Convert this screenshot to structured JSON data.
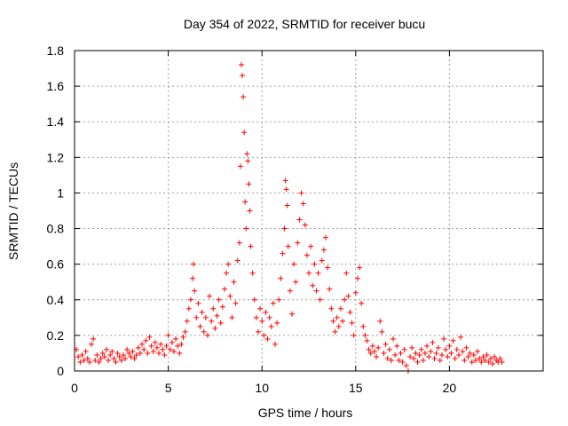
{
  "chart_data": {
    "type": "scatter",
    "title": "Day 354 of 2022, SRMTID for receiver bucu",
    "xlabel": "GPS time / hours",
    "ylabel": "SRMTID / TECUs",
    "xlim": [
      0,
      25
    ],
    "ylim": [
      0,
      1.8
    ],
    "x_ticks": [
      0,
      5,
      10,
      15,
      20
    ],
    "x_tick_labels": [
      "0",
      "5",
      "10",
      "15",
      "20"
    ],
    "y_ticks": [
      0,
      0.2,
      0.4,
      0.6,
      0.8,
      1,
      1.2,
      1.4,
      1.6,
      1.8
    ],
    "y_tick_labels": [
      "0",
      "0.2",
      "0.4",
      "0.6",
      "0.8",
      "1",
      "1.2",
      "1.4",
      "1.6",
      "1.8"
    ],
    "grid": true,
    "marker": "+",
    "marker_color": "#ff0000",
    "series": [
      {
        "name": "SRMTID",
        "points": [
          [
            0.1,
            0.12
          ],
          [
            0.2,
            0.08
          ],
          [
            0.3,
            0.05
          ],
          [
            0.4,
            0.09
          ],
          [
            0.5,
            0.06
          ],
          [
            0.6,
            0.11
          ],
          [
            0.7,
            0.07
          ],
          [
            0.8,
            0.05
          ],
          [
            0.9,
            0.15
          ],
          [
            1.0,
            0.18
          ],
          [
            1.1,
            0.06
          ],
          [
            1.2,
            0.09
          ],
          [
            1.3,
            0.05
          ],
          [
            1.4,
            0.07
          ],
          [
            1.5,
            0.1
          ],
          [
            1.6,
            0.08
          ],
          [
            1.7,
            0.12
          ],
          [
            1.8,
            0.06
          ],
          [
            1.9,
            0.09
          ],
          [
            2.0,
            0.11
          ],
          [
            2.1,
            0.07
          ],
          [
            2.2,
            0.05
          ],
          [
            2.3,
            0.1
          ],
          [
            2.4,
            0.08
          ],
          [
            2.5,
            0.06
          ],
          [
            2.6,
            0.09
          ],
          [
            2.7,
            0.07
          ],
          [
            2.8,
            0.12
          ],
          [
            2.9,
            0.1
          ],
          [
            3.0,
            0.08
          ],
          [
            3.1,
            0.11
          ],
          [
            3.2,
            0.07
          ],
          [
            3.3,
            0.09
          ],
          [
            3.4,
            0.13
          ],
          [
            3.5,
            0.1
          ],
          [
            3.6,
            0.15
          ],
          [
            3.7,
            0.12
          ],
          [
            3.8,
            0.17
          ],
          [
            3.9,
            0.1
          ],
          [
            4.0,
            0.19
          ],
          [
            4.1,
            0.14
          ],
          [
            4.2,
            0.11
          ],
          [
            4.3,
            0.16
          ],
          [
            4.4,
            0.13
          ],
          [
            4.5,
            0.1
          ],
          [
            4.6,
            0.15
          ],
          [
            4.7,
            0.12
          ],
          [
            4.8,
            0.09
          ],
          [
            4.9,
            0.14
          ],
          [
            5.0,
            0.2
          ],
          [
            5.1,
            0.12
          ],
          [
            5.2,
            0.16
          ],
          [
            5.3,
            0.11
          ],
          [
            5.4,
            0.18
          ],
          [
            5.5,
            0.14
          ],
          [
            5.6,
            0.1
          ],
          [
            5.7,
            0.15
          ],
          [
            5.8,
            0.19
          ],
          [
            5.9,
            0.22
          ],
          [
            6.0,
            0.28
          ],
          [
            6.1,
            0.35
          ],
          [
            6.2,
            0.4
          ],
          [
            6.3,
            0.52
          ],
          [
            6.35,
            0.6
          ],
          [
            6.4,
            0.45
          ],
          [
            6.5,
            0.3
          ],
          [
            6.6,
            0.38
          ],
          [
            6.7,
            0.25
          ],
          [
            6.8,
            0.33
          ],
          [
            6.9,
            0.22
          ],
          [
            7.0,
            0.3
          ],
          [
            7.1,
            0.2
          ],
          [
            7.2,
            0.42
          ],
          [
            7.3,
            0.28
          ],
          [
            7.4,
            0.35
          ],
          [
            7.5,
            0.24
          ],
          [
            7.6,
            0.31
          ],
          [
            7.7,
            0.4
          ],
          [
            7.8,
            0.27
          ],
          [
            7.9,
            0.36
          ],
          [
            8.0,
            0.46
          ],
          [
            8.1,
            0.55
          ],
          [
            8.2,
            0.6
          ],
          [
            8.3,
            0.42
          ],
          [
            8.4,
            0.3
          ],
          [
            8.5,
            0.5
          ],
          [
            8.6,
            0.38
          ],
          [
            8.7,
            0.62
          ],
          [
            8.8,
            0.72
          ],
          [
            8.85,
            1.15
          ],
          [
            8.9,
            1.72
          ],
          [
            8.95,
            1.66
          ],
          [
            9.0,
            1.54
          ],
          [
            9.05,
            1.34
          ],
          [
            9.1,
            0.95
          ],
          [
            9.15,
            0.8
          ],
          [
            9.2,
            1.22
          ],
          [
            9.25,
            1.18
          ],
          [
            9.3,
            1.05
          ],
          [
            9.35,
            0.9
          ],
          [
            9.4,
            0.7
          ],
          [
            9.5,
            0.55
          ],
          [
            9.6,
            0.4
          ],
          [
            9.7,
            0.3
          ],
          [
            9.8,
            0.22
          ],
          [
            9.9,
            0.35
          ],
          [
            10.0,
            0.28
          ],
          [
            10.1,
            0.2
          ],
          [
            10.2,
            0.33
          ],
          [
            10.3,
            0.18
          ],
          [
            10.4,
            0.3
          ],
          [
            10.5,
            0.25
          ],
          [
            10.6,
            0.38
          ],
          [
            10.7,
            0.15
          ],
          [
            10.8,
            0.27
          ],
          [
            10.9,
            0.4
          ],
          [
            11.0,
            0.52
          ],
          [
            11.1,
            0.66
          ],
          [
            11.2,
            0.8
          ],
          [
            11.25,
            1.07
          ],
          [
            11.3,
            1.02
          ],
          [
            11.35,
            0.93
          ],
          [
            11.4,
            0.7
          ],
          [
            11.5,
            0.45
          ],
          [
            11.6,
            0.32
          ],
          [
            11.7,
            0.6
          ],
          [
            11.8,
            0.5
          ],
          [
            11.9,
            0.72
          ],
          [
            12.0,
            0.85
          ],
          [
            12.1,
            1.0
          ],
          [
            12.2,
            0.94
          ],
          [
            12.3,
            0.82
          ],
          [
            12.4,
            0.65
          ],
          [
            12.5,
            0.55
          ],
          [
            12.6,
            0.7
          ],
          [
            12.7,
            0.48
          ],
          [
            12.8,
            0.6
          ],
          [
            12.9,
            0.45
          ],
          [
            13.0,
            0.55
          ],
          [
            13.1,
            0.4
          ],
          [
            13.2,
            0.62
          ],
          [
            13.3,
            0.68
          ],
          [
            13.4,
            0.75
          ],
          [
            13.5,
            0.58
          ],
          [
            13.6,
            0.46
          ],
          [
            13.7,
            0.35
          ],
          [
            13.8,
            0.28
          ],
          [
            13.9,
            0.22
          ],
          [
            14.0,
            0.3
          ],
          [
            14.1,
            0.25
          ],
          [
            14.2,
            0.35
          ],
          [
            14.3,
            0.28
          ],
          [
            14.4,
            0.4
          ],
          [
            14.5,
            0.55
          ],
          [
            14.6,
            0.42
          ],
          [
            14.7,
            0.33
          ],
          [
            14.8,
            0.27
          ],
          [
            14.9,
            0.2
          ],
          [
            15.0,
            0.44
          ],
          [
            15.1,
            0.52
          ],
          [
            15.2,
            0.58
          ],
          [
            15.3,
            0.38
          ],
          [
            15.4,
            0.25
          ],
          [
            15.5,
            0.2
          ],
          [
            15.6,
            0.17
          ],
          [
            15.7,
            0.12
          ],
          [
            15.8,
            0.1
          ],
          [
            15.9,
            0.14
          ],
          [
            16.0,
            0.11
          ],
          [
            16.1,
            0.08
          ],
          [
            16.2,
            0.13
          ],
          [
            16.3,
            0.28
          ],
          [
            16.4,
            0.22
          ],
          [
            16.5,
            0.1
          ],
          [
            16.6,
            0.15
          ],
          [
            16.7,
            0.07
          ],
          [
            16.8,
            0.12
          ],
          [
            16.9,
            0.06
          ],
          [
            17.0,
            0.18
          ],
          [
            17.1,
            0.09
          ],
          [
            17.2,
            0.14
          ],
          [
            17.3,
            0.06
          ],
          [
            17.4,
            0.1
          ],
          [
            17.5,
            0.05
          ],
          [
            17.6,
            0.12
          ],
          [
            17.7,
            0.03
          ],
          [
            17.8,
            0.0
          ],
          [
            17.9,
            0.08
          ],
          [
            18.0,
            0.13
          ],
          [
            18.1,
            0.07
          ],
          [
            18.2,
            0.1
          ],
          [
            18.3,
            0.05
          ],
          [
            18.4,
            0.09
          ],
          [
            18.5,
            0.12
          ],
          [
            18.6,
            0.06
          ],
          [
            18.7,
            0.1
          ],
          [
            18.8,
            0.14
          ],
          [
            18.9,
            0.08
          ],
          [
            19.0,
            0.11
          ],
          [
            19.1,
            0.16
          ],
          [
            19.2,
            0.07
          ],
          [
            19.3,
            0.1
          ],
          [
            19.4,
            0.13
          ],
          [
            19.5,
            0.06
          ],
          [
            19.6,
            0.09
          ],
          [
            19.7,
            0.18
          ],
          [
            19.8,
            0.12
          ],
          [
            19.9,
            0.08
          ],
          [
            20.0,
            0.14
          ],
          [
            20.1,
            0.1
          ],
          [
            20.2,
            0.17
          ],
          [
            20.3,
            0.07
          ],
          [
            20.4,
            0.12
          ],
          [
            20.5,
            0.09
          ],
          [
            20.6,
            0.19
          ],
          [
            20.7,
            0.11
          ],
          [
            20.8,
            0.06
          ],
          [
            20.9,
            0.13
          ],
          [
            21.0,
            0.08
          ],
          [
            21.1,
            0.1
          ],
          [
            21.2,
            0.05
          ],
          [
            21.3,
            0.09
          ],
          [
            21.4,
            0.06
          ],
          [
            21.5,
            0.11
          ],
          [
            21.6,
            0.07
          ],
          [
            21.7,
            0.05
          ],
          [
            21.8,
            0.08
          ],
          [
            21.9,
            0.06
          ],
          [
            22.0,
            0.09
          ],
          [
            22.1,
            0.05
          ],
          [
            22.2,
            0.07
          ],
          [
            22.3,
            0.04
          ],
          [
            22.4,
            0.08
          ],
          [
            22.5,
            0.06
          ],
          [
            22.6,
            0.05
          ],
          [
            22.7,
            0.07
          ],
          [
            22.8,
            0.05
          ]
        ]
      }
    ]
  }
}
